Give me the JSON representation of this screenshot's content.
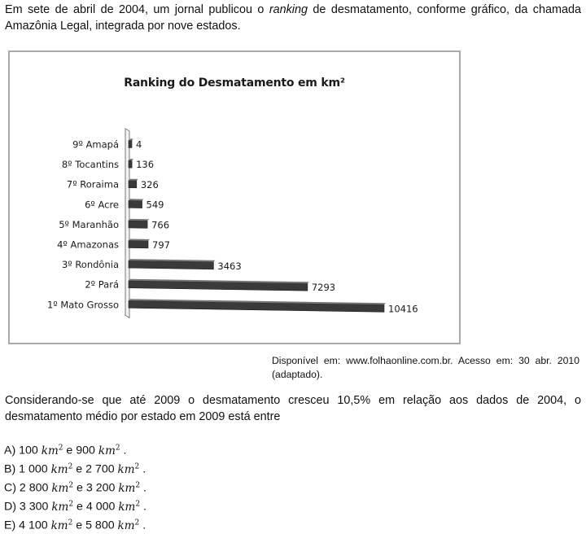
{
  "intro_text": {
    "before": "Em sete de abril de 2004, um jornal publicou o ",
    "emphasis": "ranking",
    "after": " de desmatamento, conforme gráfico, da chamada Amazônia Legal, integrada por nove estados."
  },
  "chart_data": {
    "type": "bar",
    "orientation": "horizontal",
    "title": "Ranking do Desmatamento em km²",
    "categories": [
      "9º Amapá",
      "8º Tocantins",
      "7º Roraima",
      "6º Acre",
      "5º Maranhão",
      "4º Amazonas",
      "3º Rondônia",
      "2º Pará",
      "1º Mato Grosso"
    ],
    "values": [
      4,
      136,
      326,
      549,
      766,
      797,
      3463,
      7293,
      10416
    ],
    "data_labels": [
      "4",
      "136",
      "326",
      "549",
      "766",
      "797",
      "3463",
      "7293",
      "10416"
    ],
    "bar_color": "#3a3a3a",
    "xlim": [
      0,
      10416
    ],
    "grid": false,
    "legend": "none"
  },
  "source_text": "Disponível em: www.folhaonline.com.br. Acesso em: 30 abr. 2010 (adaptado).",
  "question_text": "Considerando-se que até 2009 o desmatamento cresceu 10,5% em relação aos dados de 2004, o desmatamento médio por estado em 2009 está entre",
  "unit": {
    "base": "km",
    "exp": "2"
  },
  "options": [
    {
      "letter": "A)",
      "low": "100",
      "high": "900"
    },
    {
      "letter": "B)",
      "low": "1 000",
      "high": "2 700"
    },
    {
      "letter": "C)",
      "low": "2 800",
      "high": "3 200"
    },
    {
      "letter": "D)",
      "low": "3 300",
      "high": "4 000"
    },
    {
      "letter": "E)",
      "low": "4 100",
      "high": "5 800"
    }
  ],
  "connector": "e",
  "terminator": "."
}
